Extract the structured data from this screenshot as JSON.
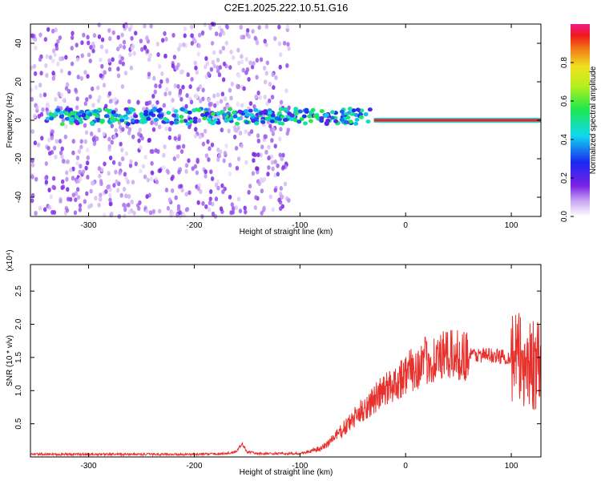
{
  "title": "C2E1.2025.222.10.51.G16",
  "colors": {
    "trace": "#e8302c",
    "axis": "#000000"
  },
  "chart_data": [
    {
      "type": "heatmap",
      "xlabel": "Height of straight line (km)",
      "ylabel": "Frequency (Hz)",
      "xlim": [
        -355,
        128
      ],
      "ylim": [
        -50,
        50
      ],
      "x_ticks": [
        -300,
        -200,
        -100,
        0,
        100
      ],
      "x_tick_labels": [
        "-300",
        "-200",
        "-100",
        "0",
        "100"
      ],
      "y_ticks": [
        -40,
        -20,
        0,
        20,
        40
      ],
      "y_tick_labels": [
        "-40",
        "-20",
        "0",
        "20",
        "40"
      ],
      "colorbar": {
        "label": "Normalized spectral amplitude",
        "range": [
          0,
          1
        ],
        "ticks": [
          0.0,
          0.2,
          0.4,
          0.6,
          0.8
        ],
        "tick_labels": [
          "0.0",
          "0.2",
          "0.4",
          "0.6",
          "0.8"
        ],
        "colormap": "rainbow (white-violet-blue-cyan-green-yellow-red-magenta)"
      },
      "features": [
        {
          "desc": "broadband noise",
          "x_range": [
            -355,
            -110
          ],
          "f_range": [
            -50,
            50
          ],
          "amplitude": 0.1
        },
        {
          "desc": "signal band",
          "x_range": [
            -340,
            -30
          ],
          "f_center": 2,
          "f_width": 4,
          "amplitude": 0.45
        },
        {
          "desc": "strong carrier",
          "x_range": [
            -30,
            128
          ],
          "f_center": 0,
          "amplitude": 0.95
        }
      ]
    },
    {
      "type": "line",
      "xlabel": "Height of straight line (km)",
      "ylabel": "SNR (10 * v/v)",
      "y_multiplier": "(x10⁴)",
      "xlim": [
        -355,
        128
      ],
      "ylim": [
        0,
        2.9
      ],
      "x_ticks": [
        -300,
        -200,
        -100,
        0,
        100
      ],
      "x_tick_labels": [
        "-300",
        "-200",
        "-100",
        "0",
        "100"
      ],
      "y_ticks": [
        0.5,
        1.0,
        1.5,
        2.0,
        2.5
      ],
      "y_tick_labels": [
        "0.5",
        "1.0",
        "1.5",
        "2.0",
        "2.5"
      ],
      "series": [
        {
          "x": [
            -355,
            -300,
            -250,
            -200,
            -170,
            -160,
            -155,
            -150,
            -140,
            -100,
            -80,
            -60,
            -40,
            -20,
            0,
            20,
            40,
            60,
            80,
            100,
            110,
            120,
            128
          ],
          "values": [
            0.04,
            0.04,
            0.04,
            0.04,
            0.05,
            0.08,
            0.2,
            0.08,
            0.05,
            0.05,
            0.12,
            0.4,
            0.72,
            1.0,
            1.25,
            1.45,
            1.52,
            1.54,
            1.53,
            1.5,
            1.45,
            1.4,
            1.3
          ]
        }
      ]
    }
  ]
}
